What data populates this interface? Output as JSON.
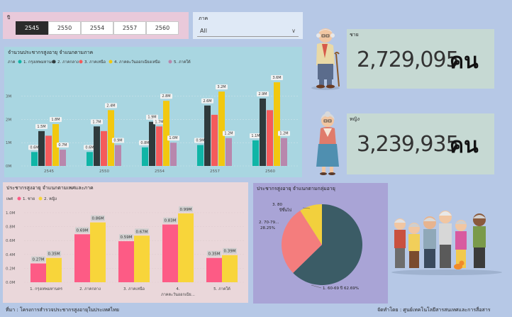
{
  "year_slicer": {
    "title": "ปี",
    "options": [
      "2545",
      "2550",
      "2554",
      "2557",
      "2560"
    ],
    "selected": "2545"
  },
  "region_slicer": {
    "title": "ภาค",
    "value": "All"
  },
  "kpis": {
    "male": {
      "label": "ชาย",
      "value": "2,729,095",
      "unit": "คน"
    },
    "female": {
      "label": "หญิง",
      "value": "3,239,935",
      "unit": "คน"
    }
  },
  "footer": {
    "source": "ที่มา : โครงการสำรวจประชากรสูงอายุในประเทศไทย",
    "credit": "จัดทำโดย : ศูนย์เทคโนโลยีสารสนเทศและการสื่อสาร"
  },
  "colors": {
    "teal": "#10b5a6",
    "dark": "#2f3a3c",
    "red": "#f55b5b",
    "yellow": "#f2c80f",
    "mauve": "#b887ad",
    "pink": "#fd5b85",
    "yellow2": "#f8d53a",
    "pie_dark": "#3b5c66",
    "pie_salmon": "#f47d7d",
    "pie_yellow": "#f2d03d"
  },
  "chart_data": [
    {
      "type": "bar",
      "title": "จำนวนประชากรสูงอายุ จำแนกตามภาค",
      "legend_title": "ภาค",
      "categories": [
        "2545",
        "2550",
        "2554",
        "2557",
        "2560"
      ],
      "yticks": [
        "0M",
        "1M",
        "2M",
        "3M"
      ],
      "ylim": [
        0,
        3.6
      ],
      "series": [
        {
          "name": "1. กรุงเทพมหานคร",
          "values": [
            0.6,
            0.6,
            0.8,
            0.9,
            1.1
          ],
          "labels": [
            "0.6M",
            "0.6M",
            "0.8M",
            "0.9M",
            "1.1M"
          ]
        },
        {
          "name": "2. ภาคกลาง",
          "values": [
            1.5,
            1.7,
            1.9,
            2.6,
            2.9
          ],
          "labels": [
            "1.5M",
            "1.7M",
            "1.9M",
            "2.6M",
            "2.9M"
          ]
        },
        {
          "name": "3. ภาคเหนือ",
          "values": [
            1.3,
            1.5,
            1.7,
            2.2,
            2.4
          ],
          "labels": [
            "",
            "",
            "1.7M",
            "",
            ""
          ]
        },
        {
          "name": "4. ภาคตะวันออกเฉียงเหนือ",
          "values": [
            1.8,
            2.4,
            2.8,
            3.2,
            3.6
          ],
          "labels": [
            "1.8M",
            "2.4M",
            "2.8M",
            "3.2M",
            "3.6M"
          ]
        },
        {
          "name": "5. ภาคใต้",
          "values": [
            0.7,
            0.9,
            1.0,
            1.2,
            1.2
          ],
          "labels": [
            "0.7M",
            "0.9M",
            "1.0M",
            "1.2M",
            "1.2M"
          ]
        }
      ]
    },
    {
      "type": "bar",
      "title": "ประชากรสูงอายุ จำแนกตามเพศและภาค",
      "legend_title": "เพศ",
      "categories": [
        "1. กรุงเทพมหานคร",
        "2. ภาคกลาง",
        "3. ภาคเหนือ",
        "4. ภาคตะวันออกเฉีย...",
        "5. ภาคใต้"
      ],
      "yticks": [
        "0.0M",
        "0.2M",
        "0.4M",
        "0.6M",
        "0.8M",
        "1.0M"
      ],
      "ylim": [
        0,
        1.05
      ],
      "series": [
        {
          "name": "1. ชาย",
          "values": [
            0.27,
            0.69,
            0.59,
            0.83,
            0.35
          ],
          "labels": [
            "0.27M",
            "0.69M",
            "0.59M",
            "0.83M",
            "0.35M"
          ]
        },
        {
          "name": "2. หญิง",
          "values": [
            0.35,
            0.86,
            0.67,
            0.99,
            0.39
          ],
          "labels": [
            "0.35M",
            "0.86M",
            "0.67M",
            "0.99M",
            "0.39M"
          ]
        }
      ]
    },
    {
      "type": "pie",
      "title": "ประชากรสูงอายุ จำแนกตามกลุ่มอายุ",
      "slices": [
        {
          "name": "1. 60-69 ปี",
          "value": 62.69,
          "label": "1. 60-69 ปี 62.69%"
        },
        {
          "name": "2. 70-79...",
          "value": 28.25,
          "label": "2. 70-79... 28.25%"
        },
        {
          "name": "3. 80 ปีขึ้นไป",
          "value": 9.06,
          "label": "3. 80 ปีขึ้นไป 9.06%"
        }
      ]
    }
  ]
}
